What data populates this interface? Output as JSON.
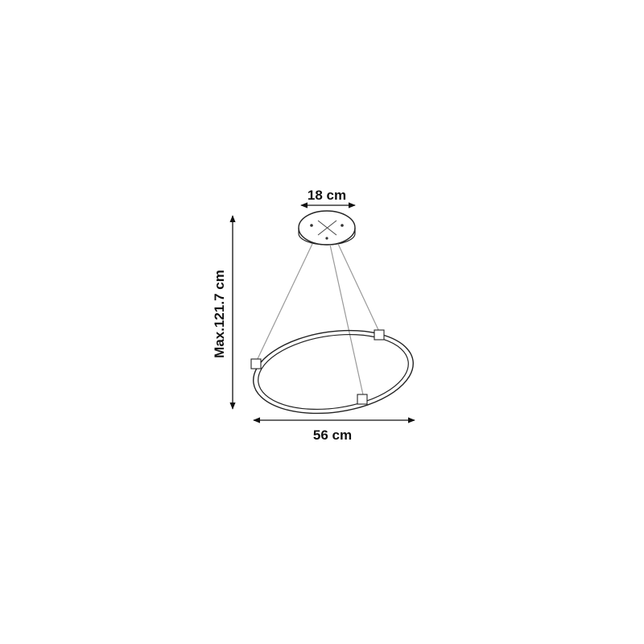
{
  "dimensions": {
    "canopy_width": "18 cm",
    "max_height": "Max.121.7 cm",
    "ring_diameter": "56 cm"
  },
  "colors": {
    "line": "#222222",
    "cable": "#999999",
    "background": "#ffffff"
  }
}
